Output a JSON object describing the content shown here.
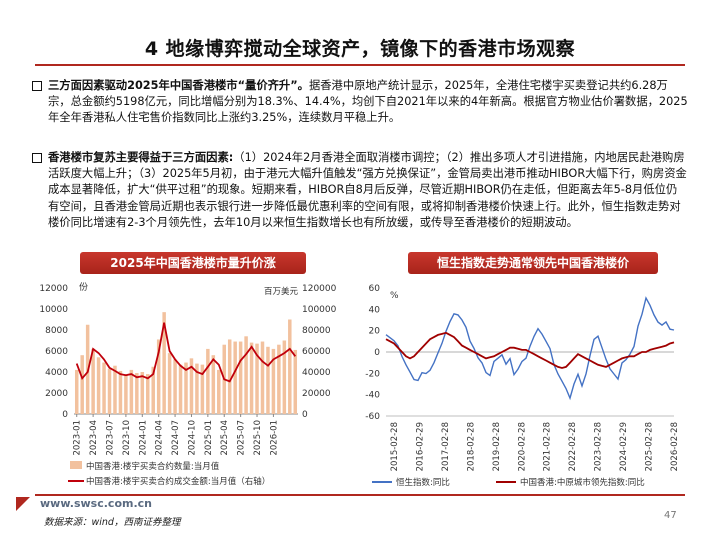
{
  "title": "4 地缘博弈搅动全球资产，镜像下的香港市场观察",
  "bullets": [
    {
      "lead": "三方面因素驱动2025年中国香港楼市“量价齐升”。",
      "text": "据香港中原地产统计显示，2025年，全港住宅楼宇买卖登记共约6.28万宗，总金额约5198亿元，同比增幅分别为18.3%、14.4%，均创下自2021年以来的4年新高。根据官方物业估价署数据，2025年全年香港私人住宅售价指数同比上涨约3.25%，连续数月平稳上升。"
    },
    {
      "lead": "香港楼市复苏主要得益于三方面因素:",
      "text": "（1）2024年2月香港全面取消楼市调控；（2）推出多项人才引进措施，内地居民赴港购房活跃度大幅上升；（3）2025年5月初，由于港元大幅升值触发“强方兑换保证”，金管局卖出港币推动HIBOR大幅下行，购房资金成本显著降低，扩大“供平过租”的现象。短期来看，HIBOR自8月后反弹，尽管近期HIBOR仍在走低，但距离去年5-8月低位仍有空间，且香港金管局近期也表示银行进一步降低最优惠利率的空间有限，或将抑制香港楼价快速上行。此外，恒生指数走势对楼价同比增速有2-3个月领先性，去年10月以来恒生指数增长也有所放缓，或传导至香港楼价的短期波动。"
    }
  ],
  "chart_left": {
    "banner": "2025年中国香港楼市量升价涨"
  },
  "chart_right": {
    "banner": "恒生指数走势通常领先中国香港楼价"
  },
  "chart_data": [
    {
      "type": "bar",
      "left_unit": "份",
      "right_unit": "百万美元",
      "ylim_left": [
        0,
        12000
      ],
      "ylim_right": [
        0,
        120000
      ],
      "left_ticks": [
        "12000",
        "10000",
        "8000",
        "6000",
        "4000",
        "2000",
        "0"
      ],
      "right_ticks": [
        "120000",
        "100000",
        "80000",
        "60000",
        "40000",
        "20000",
        "0"
      ],
      "x_ticks": [
        "2023-01",
        "2023-04",
        "2023-07",
        "2023-10",
        "2024-01",
        "2024-04",
        "2024-07",
        "2024-10",
        "2025-01",
        "2025-04",
        "2025-07",
        "2025-10",
        "2026-01"
      ],
      "series": [
        {
          "name": "中国香港:楼宇买卖合约数量:当月值",
          "axis": "left",
          "kind": "bar",
          "color": "#f2c19e",
          "values": [
            4200,
            5600,
            8500,
            6200,
            5400,
            4900,
            4300,
            4600,
            4100,
            3800,
            4200,
            3900,
            4000,
            3800,
            4500,
            7100,
            9700,
            5800,
            5200,
            4700,
            4900,
            5300,
            4800,
            4700,
            6200,
            5600,
            4200,
            6600,
            7100,
            6900,
            6900,
            7400,
            6800,
            6700,
            6900,
            6400,
            6200,
            6600,
            7000,
            9000,
            6100
          ]
        },
        {
          "name": "中国香港:楼宇买卖合约成交金额:当月值（右轴）",
          "axis": "right",
          "kind": "line",
          "color": "#c0000b",
          "values": [
            48000,
            34000,
            40000,
            62000,
            58000,
            52000,
            44000,
            41000,
            38000,
            37000,
            38000,
            35000,
            36000,
            34000,
            38000,
            59000,
            87000,
            60000,
            52000,
            46000,
            42000,
            45000,
            40000,
            38000,
            45000,
            52000,
            47000,
            33000,
            31000,
            41000,
            51000,
            57000,
            64000,
            56000,
            50000,
            46000,
            52000,
            55000,
            58000,
            62000,
            55000
          ]
        }
      ],
      "legend": "bottom"
    },
    {
      "type": "line",
      "y_unit": "%",
      "ylim": [
        -60,
        60
      ],
      "y_ticks": [
        "60",
        "40",
        "20",
        "0",
        "-20",
        "-40",
        "-60"
      ],
      "x_ticks": [
        "2015-02-28",
        "2016-02-29",
        "2017-02-28",
        "2018-02-28",
        "2019-02-28",
        "2020-02-28",
        "2021-02-28",
        "2022-02-28",
        "2023-02-28",
        "2024-02-29",
        "2025-02-28",
        "2026-02-28"
      ],
      "series": [
        {
          "name": "恒生指数:同比",
          "color": "#4472c4",
          "values": [
            18,
            14,
            10,
            4,
            -3,
            -12,
            -20,
            -24,
            -26,
            -20,
            -22,
            -16,
            -10,
            -2,
            10,
            20,
            28,
            34,
            36,
            30,
            22,
            12,
            4,
            -6,
            -12,
            -18,
            -22,
            -10,
            -4,
            -2,
            -12,
            -8,
            -20,
            -16,
            -10,
            -4,
            6,
            14,
            20,
            18,
            10,
            2,
            -10,
            -20,
            -28,
            -36,
            -42,
            -30,
            -22,
            -30,
            -20,
            -4,
            10,
            16,
            4,
            -8,
            -14,
            -20,
            -26,
            -12,
            -6,
            -2,
            4,
            26,
            36,
            50,
            42,
            36,
            28,
            24,
            30,
            22,
            20
          ]
        },
        {
          "name": "中国香港:中原城市领先指数:同比",
          "color": "#a00000",
          "values": [
            12,
            10,
            8,
            4,
            0,
            -4,
            -6,
            -4,
            0,
            4,
            8,
            12,
            14,
            16,
            17,
            18,
            16,
            14,
            10,
            6,
            4,
            2,
            0,
            -2,
            -4,
            -6,
            -5,
            -4,
            -2,
            0,
            2,
            4,
            4,
            3,
            2,
            2,
            0,
            -2,
            -4,
            -6,
            -8,
            -10,
            -12,
            -14,
            -15,
            -14,
            -10,
            -6,
            -2,
            -4,
            -6,
            -8,
            -10,
            -12,
            -13,
            -14,
            -12,
            -10,
            -8,
            -6,
            -5,
            -4,
            -4,
            -2,
            0,
            0,
            2,
            3,
            4,
            5,
            6,
            8,
            9
          ]
        }
      ],
      "legend": "bottom"
    }
  ],
  "footer": {
    "url": "www.swsc.com.cn",
    "source": "数据来源：wind，西南证券整理",
    "page": "47"
  }
}
